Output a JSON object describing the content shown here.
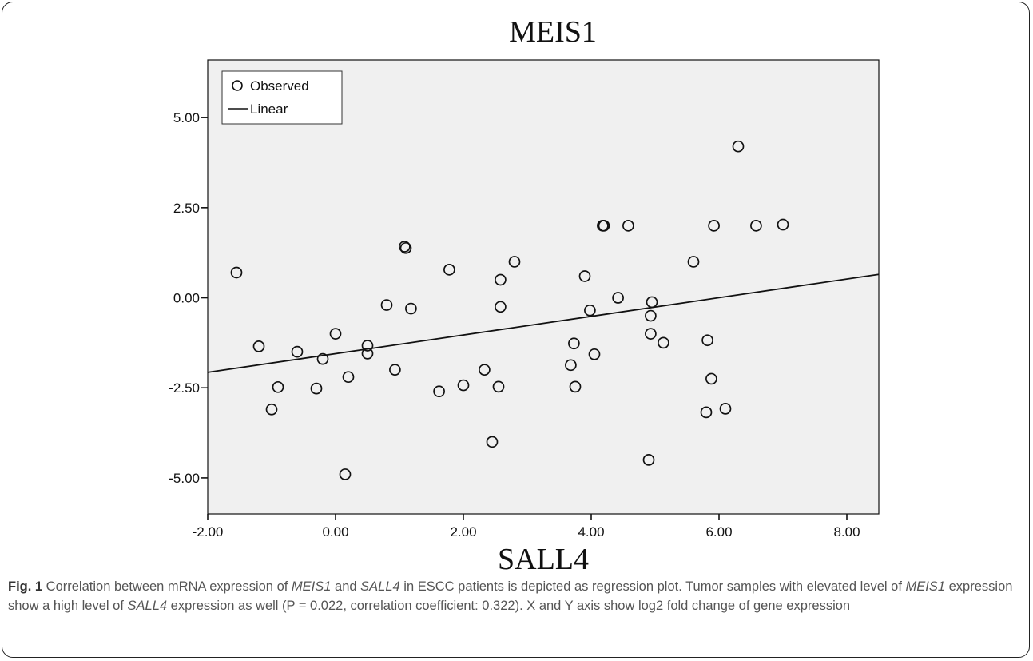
{
  "chart_data": {
    "type": "scatter",
    "title": "MEIS1",
    "xlabel": "SALL4",
    "ylabel": "",
    "xlim": [
      -2.0,
      8.5
    ],
    "ylim": [
      -6.0,
      6.6
    ],
    "x_ticks": [
      "-2.00",
      "0.00",
      "2.00",
      "4.00",
      "6.00",
      "8.00"
    ],
    "x_tick_values": [
      -2,
      0,
      2,
      4,
      6,
      8
    ],
    "y_ticks": [
      "5.00",
      "2.50",
      "0.00",
      "-2.50",
      "-5.00"
    ],
    "y_tick_values": [
      5,
      2.5,
      0,
      -2.5,
      -5
    ],
    "grid": false,
    "legend_position": "top-left",
    "series": [
      {
        "name": "Observed",
        "marker": "open-circle",
        "points": [
          [
            -1.55,
            0.7
          ],
          [
            -1.2,
            -1.35
          ],
          [
            -1.0,
            -3.1
          ],
          [
            -0.9,
            -2.48
          ],
          [
            -0.6,
            -1.5
          ],
          [
            -0.3,
            -2.52
          ],
          [
            -0.2,
            -1.7
          ],
          [
            0.0,
            -1.0
          ],
          [
            0.15,
            -4.9
          ],
          [
            0.2,
            -2.2
          ],
          [
            0.5,
            -1.33
          ],
          [
            0.5,
            -1.55
          ],
          [
            0.8,
            -0.2
          ],
          [
            0.93,
            -2.0
          ],
          [
            1.08,
            1.42
          ],
          [
            1.1,
            1.38
          ],
          [
            1.18,
            -0.3
          ],
          [
            1.62,
            -2.6
          ],
          [
            1.78,
            0.78
          ],
          [
            2.0,
            -2.43
          ],
          [
            2.33,
            -2.0
          ],
          [
            2.45,
            -4.0
          ],
          [
            2.55,
            -2.47
          ],
          [
            2.58,
            0.5
          ],
          [
            2.58,
            -0.25
          ],
          [
            2.8,
            1.0
          ],
          [
            3.68,
            -1.87
          ],
          [
            3.73,
            -1.27
          ],
          [
            3.75,
            -2.47
          ],
          [
            3.9,
            0.6
          ],
          [
            3.98,
            -0.35
          ],
          [
            4.05,
            -1.57
          ],
          [
            4.18,
            2.0
          ],
          [
            4.2,
            2.0
          ],
          [
            4.42,
            0.0
          ],
          [
            4.58,
            2.0
          ],
          [
            4.9,
            -4.5
          ],
          [
            4.93,
            -0.5
          ],
          [
            4.93,
            -1.0
          ],
          [
            4.95,
            -0.12
          ],
          [
            5.13,
            -1.25
          ],
          [
            5.6,
            1.0
          ],
          [
            5.8,
            -3.18
          ],
          [
            5.82,
            -1.18
          ],
          [
            5.88,
            -2.25
          ],
          [
            5.92,
            2.0
          ],
          [
            6.1,
            -3.08
          ],
          [
            6.3,
            4.2
          ],
          [
            6.58,
            2.0
          ],
          [
            7.0,
            2.03
          ]
        ]
      },
      {
        "name": "Linear",
        "marker": "line",
        "line": [
          [
            -2.0,
            -2.07
          ],
          [
            8.5,
            0.65
          ]
        ]
      }
    ]
  },
  "caption": {
    "label": "Fig. 1",
    "text_1": " Correlation between mRNA expression of ",
    "gene_1": "MEIS1",
    "text_2": " and ",
    "gene_2": "SALL4",
    "text_3": " in ESCC patients is depicted as regression plot. Tumor samples with elevated level of ",
    "gene_3": "MEIS1",
    "text_4": " expression show a high level of ",
    "gene_4": "SALL4",
    "text_5": " expression as well (P = 0.022, correlation coefficient: 0.322). X and Y axis show log2 fold change of gene expression"
  }
}
